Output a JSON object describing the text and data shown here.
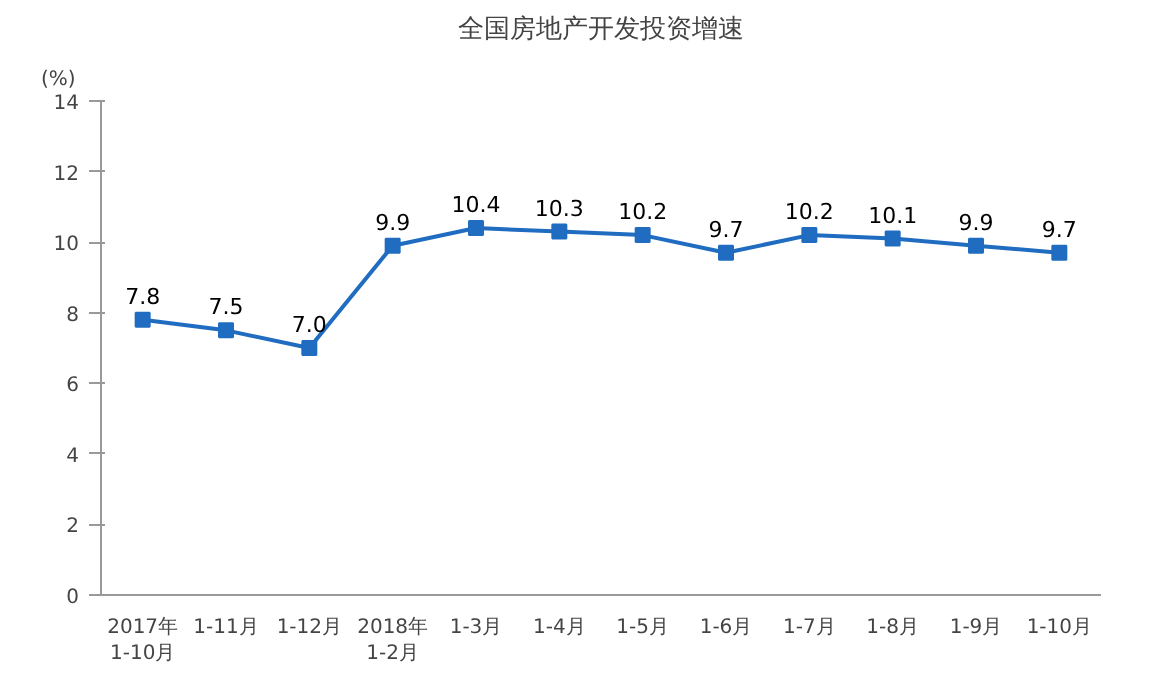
{
  "chart_data": {
    "type": "line",
    "title": "全国房地产开发投资增速",
    "ylabel": "(%)",
    "categories": [
      "2017年\n1-10月",
      "1-11月",
      "1-12月",
      "2018年\n1-2月",
      "1-3月",
      "1-4月",
      "1-5月",
      "1-6月",
      "1-7月",
      "1-8月",
      "1-9月",
      "1-10月"
    ],
    "series": [
      {
        "color": "#1f6cc0",
        "values": [
          7.8,
          7.5,
          7.0,
          9.9,
          10.4,
          10.3,
          10.2,
          9.7,
          10.2,
          10.1,
          9.9,
          9.7
        ],
        "value_labels": [
          "7.8",
          "7.5",
          "7.0",
          "9.9",
          "10.4",
          "10.3",
          "10.2",
          "9.7",
          "10.2",
          "10.1",
          "9.9",
          "9.7"
        ]
      }
    ],
    "ylim": [
      0,
      14
    ],
    "yticks": [
      0,
      2,
      4,
      6,
      8,
      10,
      12,
      14
    ],
    "marker": "square",
    "line_style": "solid",
    "grid": false
  }
}
